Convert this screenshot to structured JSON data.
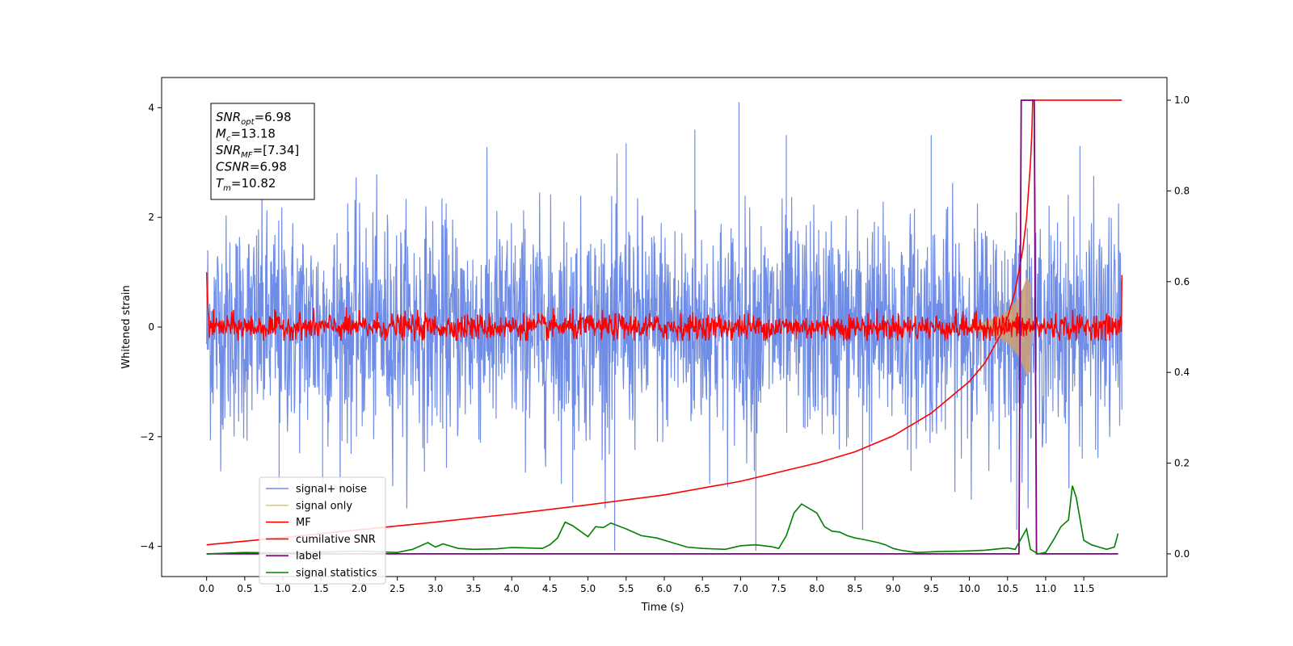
{
  "chart_data": {
    "type": "line",
    "xlabel": "Time (s)",
    "ylabel_left": "Whitened strain",
    "ylabel_right": "",
    "x_range": [
      -0.59,
      12.59
    ],
    "y_left_range": [
      -4.55,
      4.55
    ],
    "y_right_range": [
      -0.05,
      1.05
    ],
    "x_ticks": [
      "0.0",
      "0.5",
      "1.0",
      "1.5",
      "2.0",
      "2.5",
      "3.0",
      "3.5",
      "4.0",
      "4.5",
      "5.0",
      "5.5",
      "6.0",
      "6.5",
      "7.0",
      "7.5",
      "8.0",
      "8.5",
      "9.0",
      "9.5",
      "10.0",
      "10.5",
      "11.0",
      "11.5"
    ],
    "y_left_ticks": [
      "4",
      "2",
      "0",
      "−2",
      "−4"
    ],
    "y_left_tick_values": [
      4,
      2,
      0,
      -2,
      -4
    ],
    "y_right_ticks": [
      "1.0",
      "0.8",
      "0.6",
      "0.4",
      "0.2",
      "0.0"
    ],
    "y_right_tick_values": [
      1.0,
      0.8,
      0.6,
      0.4,
      0.2,
      0.0
    ],
    "colors": {
      "signal_noise": "#6f8de6",
      "signal_only": "#f5c26b",
      "signal_envelope": "#c9a07a",
      "mf": "#ff0000",
      "cumulative_snr": "#ff0000",
      "label": "#800080",
      "signal_statistics": "#008000"
    },
    "info_box": [
      {
        "sym": "SNR",
        "sub": "opt",
        "rest": "=6.98"
      },
      {
        "sym": "M",
        "sub": "c",
        "rest": "=13.18"
      },
      {
        "sym": "SNR",
        "sub": "MF",
        "rest": "=[7.34]"
      },
      {
        "sym": "CSNR",
        "sub": "",
        "rest": "=6.98"
      },
      {
        "sym": "T",
        "sub": "m",
        "rest": "=10.82"
      }
    ],
    "legend": [
      {
        "label": "signal+ noise",
        "color": "#6f8de6"
      },
      {
        "label": "signal only",
        "color": "#f5c26b"
      },
      {
        "label": "MF",
        "color": "#ff0000"
      },
      {
        "label": "cumilative SNR",
        "color": "#ff0000"
      },
      {
        "label": "label",
        "color": "#800080"
      },
      {
        "label": "signal statistics",
        "color": "#008000"
      }
    ],
    "series": [
      {
        "name": "signal+ noise",
        "axis": "left",
        "x_range": [
          0.0,
          12.0
        ],
        "amplitude_sd": 1.0,
        "y_max_observed": 4.1,
        "y_min_observed": -4.08,
        "spikes": [
          [
            6.98,
            4.1
          ],
          [
            5.35,
            -4.08
          ],
          [
            7.2,
            -4.08
          ],
          [
            0.95,
            -2.85
          ],
          [
            1.52,
            -2.95
          ],
          [
            4.8,
            -3.2
          ],
          [
            10.62,
            -3.7
          ],
          [
            8.6,
            -3.7
          ],
          [
            5.5,
            3.35
          ],
          [
            6.4,
            3.6
          ],
          [
            7.6,
            3.5
          ],
          [
            9.5,
            3.5
          ],
          [
            11.45,
            3.3
          ]
        ]
      },
      {
        "name": "signal only",
        "axis": "left",
        "x": [
          10.0,
          10.2,
          10.4,
          10.5,
          10.6,
          10.65,
          10.7,
          10.75,
          10.8,
          10.82
        ],
        "envelope": [
          0.05,
          0.1,
          0.2,
          0.3,
          0.45,
          0.55,
          0.7,
          0.9,
          0.8,
          0.0
        ]
      },
      {
        "name": "MF",
        "axis": "left",
        "x_range": [
          0.0,
          12.0
        ],
        "amplitude_sd": 0.12,
        "start_value": 1.0,
        "end_value": 0.95
      },
      {
        "name": "cumilative SNR",
        "axis": "right",
        "x": [
          0.0,
          1.0,
          2.0,
          3.0,
          4.0,
          5.0,
          6.0,
          7.0,
          8.0,
          8.5,
          9.0,
          9.5,
          10.0,
          10.2,
          10.4,
          10.5,
          10.6,
          10.7,
          10.75,
          10.8,
          10.82,
          10.83,
          12.0
        ],
        "y": [
          0.02,
          0.036,
          0.053,
          0.07,
          0.088,
          0.108,
          0.13,
          0.16,
          0.2,
          0.225,
          0.26,
          0.31,
          0.38,
          0.42,
          0.48,
          0.52,
          0.58,
          0.67,
          0.74,
          0.86,
          0.93,
          1.0,
          1.0
        ]
      },
      {
        "name": "label",
        "axis": "right",
        "x": [
          0.0,
          10.65,
          10.68,
          10.85,
          10.88,
          11.95
        ],
        "y": [
          0.0,
          0.0,
          1.0,
          1.0,
          0.0,
          0.0
        ]
      },
      {
        "name": "signal statistics",
        "axis": "right",
        "x": [
          0.0,
          0.5,
          1.0,
          1.5,
          2.0,
          2.5,
          2.7,
          2.9,
          3.0,
          3.1,
          3.2,
          3.3,
          3.5,
          3.8,
          4.0,
          4.2,
          4.4,
          4.5,
          4.6,
          4.7,
          4.8,
          4.9,
          5.0,
          5.1,
          5.2,
          5.3,
          5.5,
          5.7,
          5.9,
          6.1,
          6.3,
          6.5,
          6.8,
          7.0,
          7.2,
          7.4,
          7.5,
          7.6,
          7.7,
          7.8,
          7.9,
          8.0,
          8.1,
          8.2,
          8.3,
          8.4,
          8.5,
          8.6,
          8.8,
          8.9,
          9.0,
          9.1,
          9.3,
          9.6,
          9.9,
          10.2,
          10.5,
          10.6,
          10.7,
          10.75,
          10.8,
          10.9,
          11.0,
          11.1,
          11.2,
          11.3,
          11.35,
          11.4,
          11.5,
          11.6,
          11.7,
          11.8,
          11.9,
          11.95
        ],
        "y": [
          0.0,
          0.003,
          0.002,
          0.004,
          0.006,
          0.003,
          0.01,
          0.025,
          0.015,
          0.022,
          0.017,
          0.012,
          0.01,
          0.011,
          0.014,
          0.013,
          0.012,
          0.02,
          0.035,
          0.07,
          0.062,
          0.05,
          0.038,
          0.06,
          0.058,
          0.068,
          0.055,
          0.04,
          0.035,
          0.025,
          0.015,
          0.012,
          0.01,
          0.018,
          0.02,
          0.016,
          0.012,
          0.04,
          0.09,
          0.11,
          0.1,
          0.09,
          0.06,
          0.05,
          0.048,
          0.04,
          0.035,
          0.032,
          0.025,
          0.02,
          0.012,
          0.008,
          0.003,
          0.005,
          0.006,
          0.008,
          0.013,
          0.01,
          0.04,
          0.055,
          0.01,
          0.0,
          0.003,
          0.03,
          0.06,
          0.075,
          0.15,
          0.125,
          0.03,
          0.02,
          0.015,
          0.01,
          0.015,
          0.045
        ]
      }
    ]
  }
}
